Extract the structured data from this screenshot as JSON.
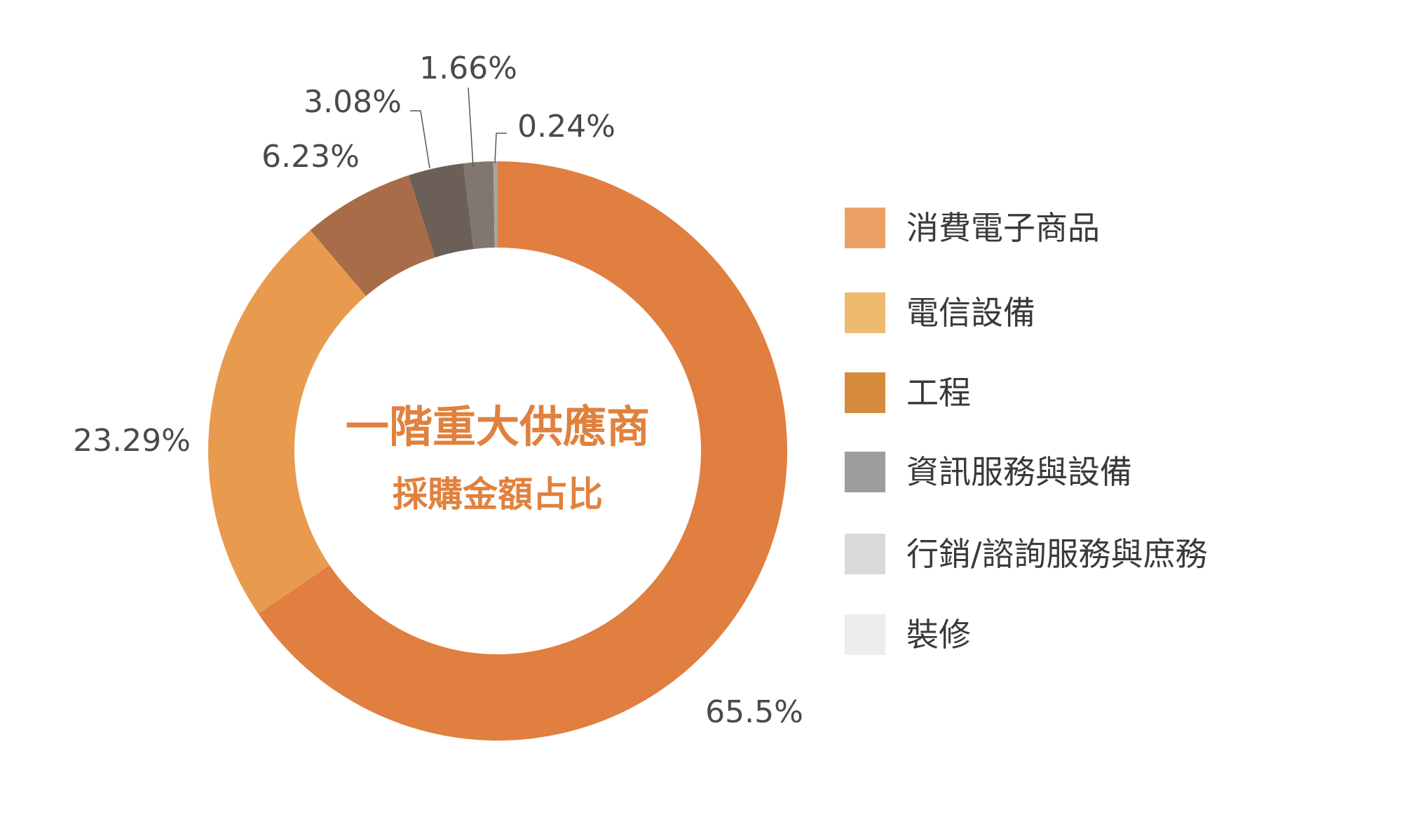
{
  "chart_data": {
    "type": "pie",
    "center_title": "一階重大供應商",
    "center_subtitle": "採購金額占比",
    "series": [
      {
        "name": "消費電子商品",
        "value": 65.5,
        "label": "65.5%",
        "slice_color": "#E07F40",
        "legend_color": "#EBA063"
      },
      {
        "name": "電信設備",
        "value": 23.29,
        "label": "23.29%",
        "slice_color": "#E89B4E",
        "legend_color": "#EDBA6E"
      },
      {
        "name": "工程",
        "value": 6.23,
        "label": "6.23%",
        "slice_color": "#A86C48",
        "legend_color": "#D68A3C"
      },
      {
        "name": "資訊服務與設備",
        "value": 3.08,
        "label": "3.08%",
        "slice_color": "#6B5F58",
        "legend_color": "#9D9D9D"
      },
      {
        "name": "行銷/諮詢服務與庶務",
        "value": 1.66,
        "label": "1.66%",
        "slice_color": "#807771",
        "legend_color": "#D9DADA"
      },
      {
        "name": "裝修",
        "value": 0.24,
        "label": "0.24%",
        "slice_color": "#A6A6A6",
        "legend_color": "#EDEDED"
      }
    ],
    "title_color": "#E0813E",
    "label_color": "#4A4A4A",
    "legend_placement": "right"
  }
}
